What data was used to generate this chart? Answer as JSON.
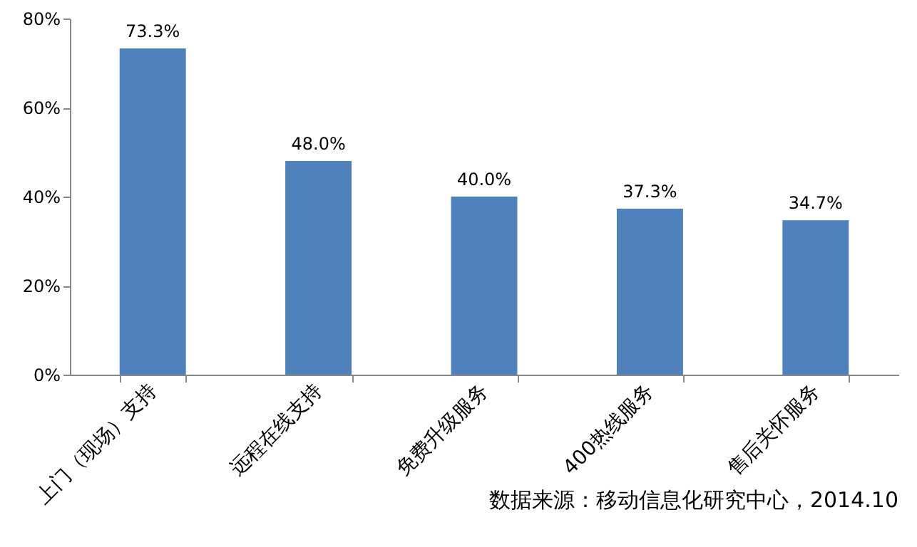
{
  "chart_data": {
    "type": "bar",
    "categories": [
      "上门（现场）支持",
      "远程在线支持",
      "免费升级服务",
      "400热线服务",
      "售后关怀服务"
    ],
    "values": [
      73.3,
      48.0,
      40.0,
      37.3,
      34.7
    ],
    "value_labels": [
      "73.3%",
      "48.0%",
      "40.0%",
      "37.3%",
      "34.7%"
    ],
    "color": "#4f81bd",
    "ylim": [
      0,
      80
    ],
    "yticks": [
      {
        "value": 0,
        "label": "0%"
      },
      {
        "value": 20,
        "label": "20%"
      },
      {
        "value": 40,
        "label": "40%"
      },
      {
        "value": 60,
        "label": "60%"
      },
      {
        "value": 80,
        "label": "80%"
      }
    ],
    "grid": false,
    "annotations": [
      "数据来源：移动信息化研究中心，2014.10"
    ]
  }
}
